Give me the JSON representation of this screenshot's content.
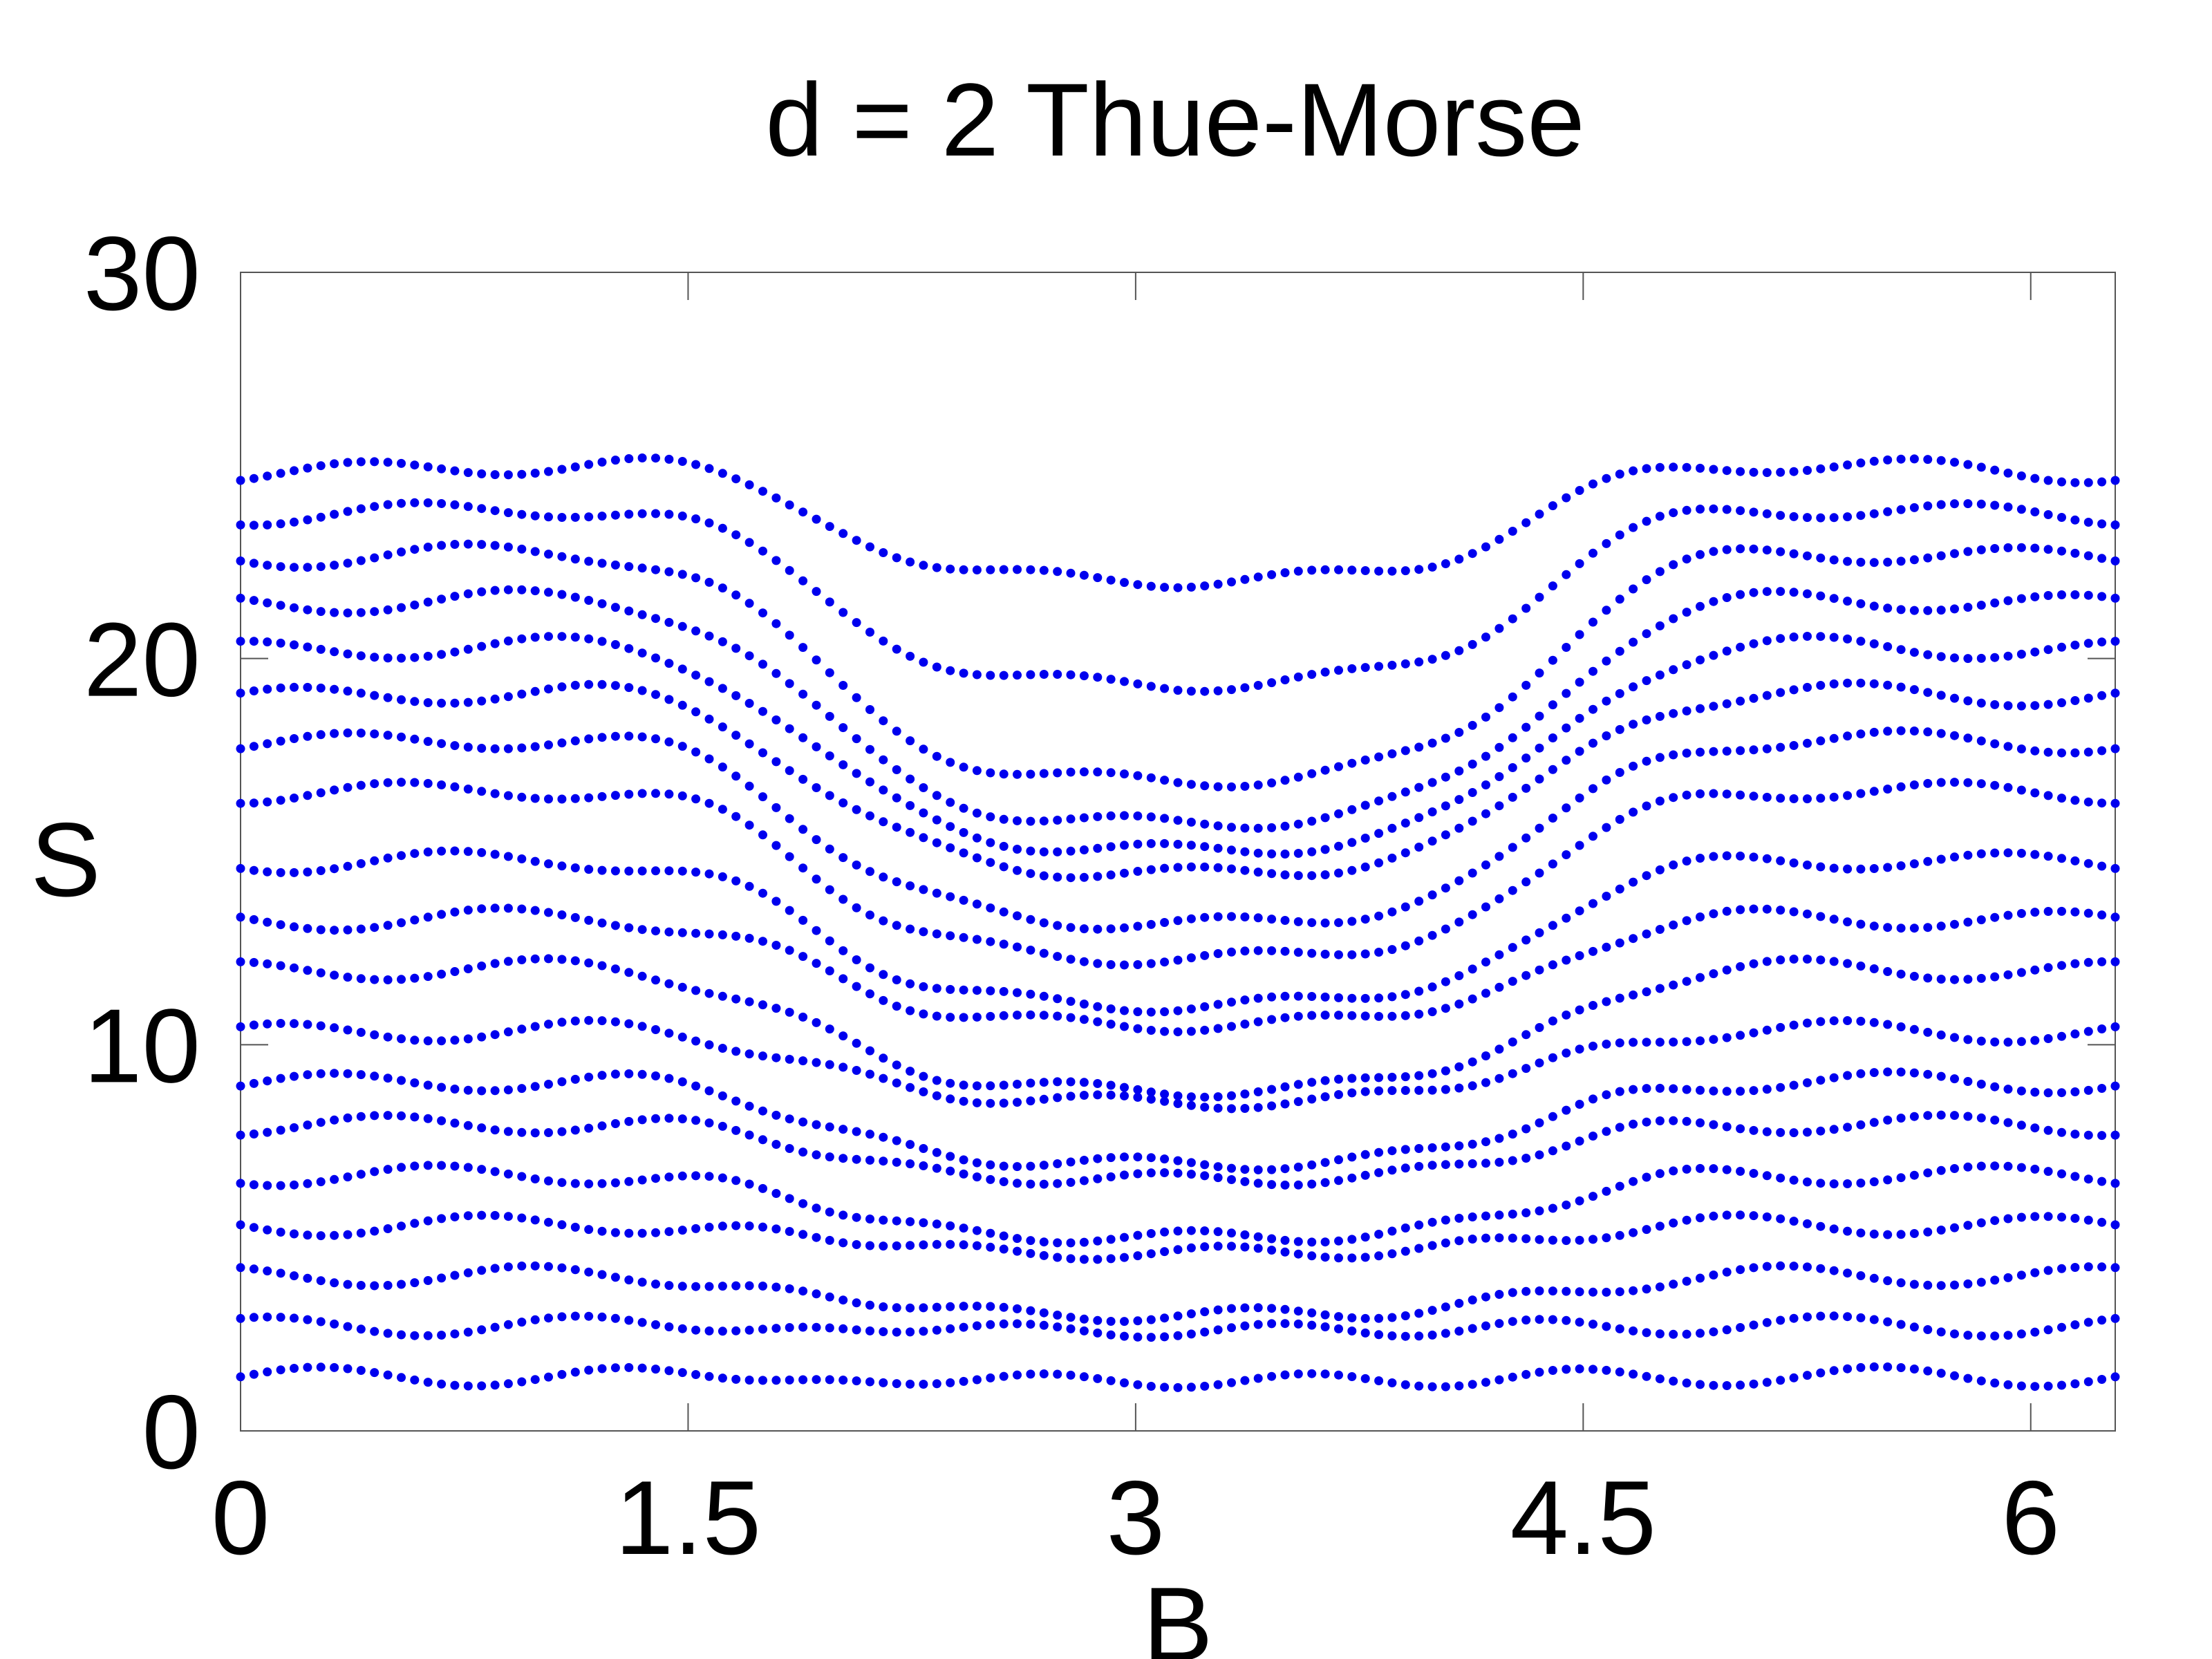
{
  "chart_data": {
    "type": "scatter",
    "title": "d = 2 Thue-Morse",
    "xlabel": "B",
    "ylabel": "S",
    "xlim": [
      0,
      6.2832
    ],
    "ylim": [
      0,
      30
    ],
    "xticks": [
      0,
      1.5,
      3,
      4.5,
      6
    ],
    "xtick_labels": [
      "0",
      "1.5",
      "3",
      "4.5",
      "6"
    ],
    "yticks": [
      0,
      10,
      20,
      30
    ],
    "ytick_labels": [
      "0",
      "10",
      "20",
      "30"
    ],
    "grid": false,
    "legend": "none",
    "marker_color": "#0000ee",
    "marker": "dot",
    "sample_x": [
      0,
      0.1,
      0.2,
      0.3,
      0.4,
      0.5,
      0.6,
      0.7,
      0.8,
      0.9,
      1.0,
      1.1,
      1.2,
      1.3,
      1.4,
      1.5,
      1.6,
      1.7,
      1.8,
      1.9,
      2.0,
      2.1,
      2.2,
      2.3,
      2.4,
      2.5,
      2.6,
      2.7,
      2.8,
      2.9,
      3.0,
      3.1,
      3.2,
      3.3,
      3.4,
      3.5,
      3.6,
      3.7,
      3.8,
      3.9,
      4.0,
      4.1,
      4.2,
      4.3,
      4.4,
      4.5,
      4.6,
      4.7,
      4.8,
      4.9,
      5.0,
      5.1,
      5.2,
      5.3,
      5.4,
      5.5,
      5.6,
      5.7,
      5.8,
      5.9,
      6.0,
      6.1,
      6.2,
      6.28
    ],
    "levels_at_edges": [
      1.4,
      2.7,
      4.0,
      5.3,
      6.6,
      7.9,
      9.0,
      10.3,
      11.9,
      13.2,
      14.7,
      16.5,
      17.8,
      19.0,
      20.2,
      21.4,
      22.6,
      23.7,
      24.8
    ],
    "levels_at_center": [
      1.3,
      2.6,
      3.0,
      4.6,
      5.0,
      6.5,
      6.9,
      8.5,
      8.8,
      10.5,
      11.0,
      12.2,
      13.1,
      14.4,
      15.0,
      15.7,
      16.8,
      19.3,
      22.0
    ]
  }
}
